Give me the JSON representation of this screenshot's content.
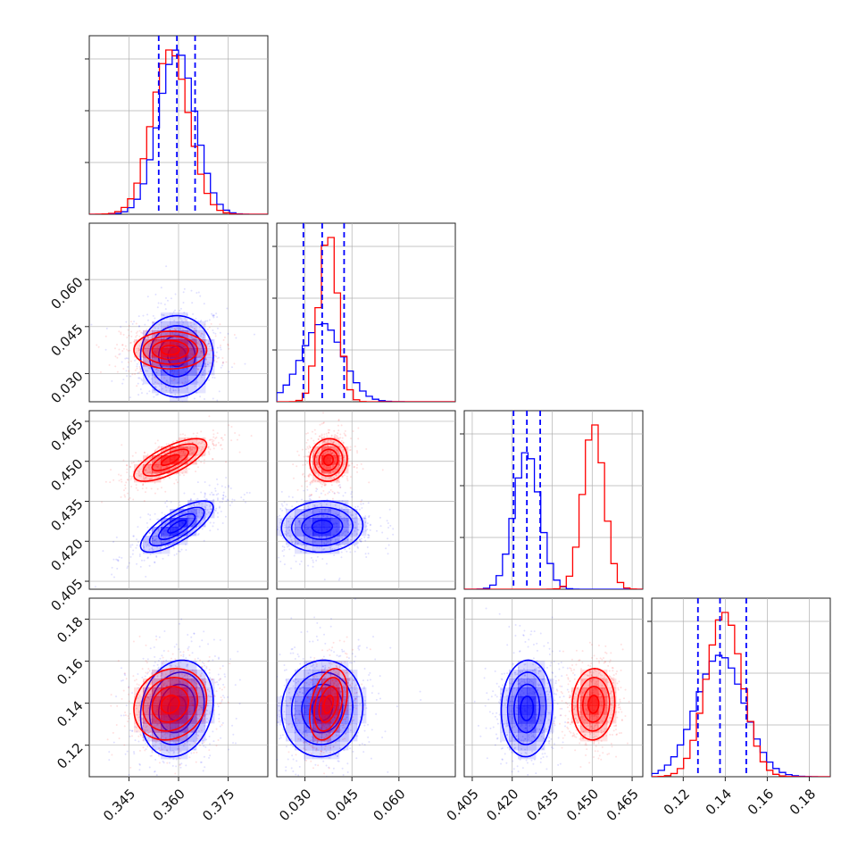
{
  "chart_data": {
    "type": "corner",
    "title": "",
    "grid": true,
    "legend": "none",
    "series": [
      {
        "key": "blue",
        "color": "#0000ff",
        "means": [
          0.3595,
          0.0355,
          0.4255,
          0.1375
        ],
        "sds": [
          0.0055,
          0.0065,
          0.0048,
          0.0115
        ],
        "corr": [
          [
            1,
            0,
            0.75,
            0.15
          ],
          [
            0,
            1,
            0.05,
            0.05
          ],
          [
            0.75,
            0.05,
            1,
            0.05
          ],
          [
            0.15,
            0.05,
            0.05,
            1
          ]
        ],
        "quantiles": [
          [
            0.354,
            0.3595,
            0.365
          ],
          [
            0.0295,
            0.0355,
            0.0425
          ],
          [
            0.4205,
            0.4255,
            0.4305
          ],
          [
            0.127,
            0.1375,
            0.15
          ]
        ],
        "show_quantiles": true
      },
      {
        "key": "red",
        "color": "#ff0000",
        "means": [
          0.3575,
          0.0375,
          0.4505,
          0.1395
        ],
        "sds": [
          0.0055,
          0.003,
          0.004,
          0.0085
        ],
        "corr": [
          [
            1,
            0,
            0.72,
            0.15
          ],
          [
            0,
            1,
            0.05,
            0.35
          ],
          [
            0.72,
            0.05,
            1,
            0.05
          ],
          [
            0.15,
            0.35,
            0.05,
            1
          ]
        ],
        "quantiles": [
          [
            0.352,
            0.3575,
            0.363
          ],
          [
            0.0345,
            0.0375,
            0.0405
          ],
          [
            0.4465,
            0.4505,
            0.4545
          ],
          [
            0.131,
            0.1395,
            0.148
          ]
        ],
        "show_quantiles": false
      }
    ],
    "params": [
      {
        "range": [
          0.333,
          0.387
        ],
        "ticks": [
          "0.345",
          "0.360",
          "0.375"
        ],
        "tick_values": [
          0.345,
          0.36,
          0.375
        ]
      },
      {
        "range": [
          0.021,
          0.078
        ],
        "ticks": [
          "0.030",
          "0.045",
          "0.060"
        ],
        "tick_values": [
          0.03,
          0.045,
          0.06
        ]
      },
      {
        "range": [
          0.402,
          0.469
        ],
        "ticks": [
          "0.405",
          "0.420",
          "0.435",
          "0.450",
          "0.465"
        ],
        "tick_values": [
          0.405,
          0.42,
          0.435,
          0.45,
          0.465
        ]
      },
      {
        "range": [
          0.105,
          0.19
        ],
        "ticks": [
          "0.12",
          "0.14",
          "0.16",
          "0.18"
        ],
        "tick_values": [
          0.12,
          0.14,
          0.16,
          0.18
        ]
      }
    ]
  }
}
